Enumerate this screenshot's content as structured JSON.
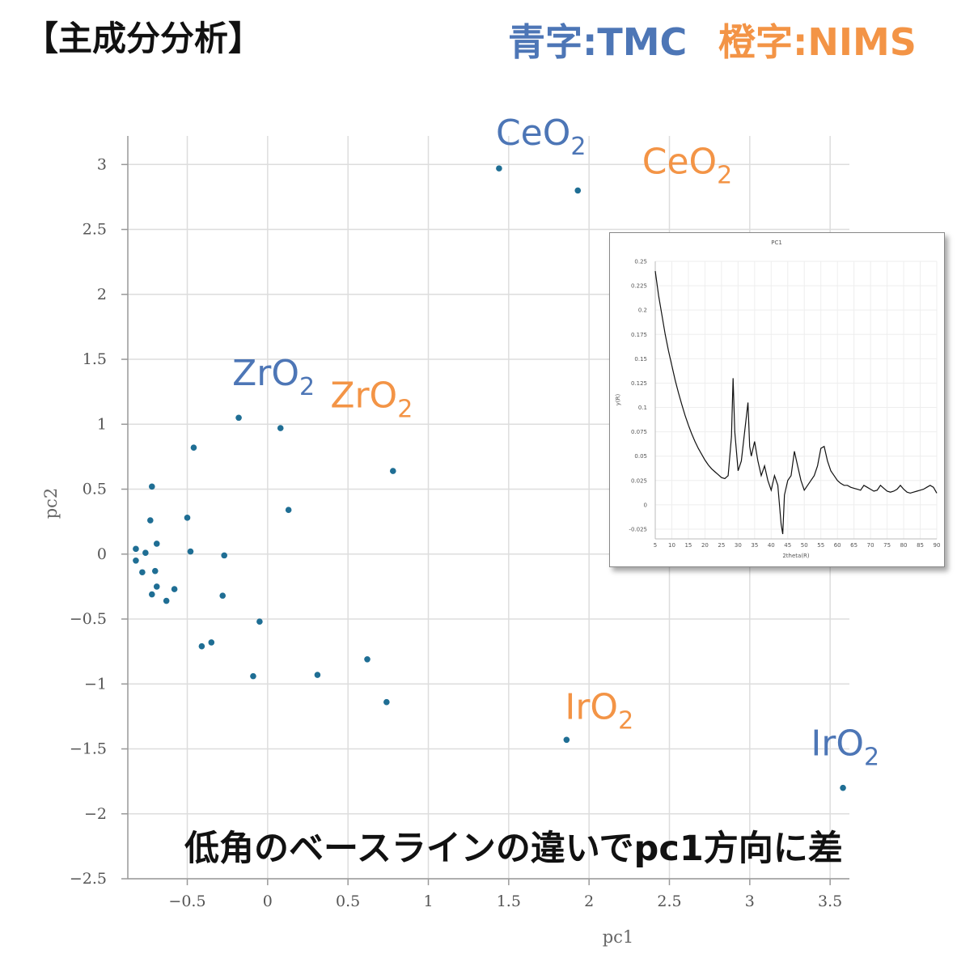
{
  "header": {
    "title": "【主成分分析】"
  },
  "legend_note": {
    "tmc": "青字:TMC",
    "nims": "橙字:NIMS"
  },
  "caption": "低角のベースラインの違いでpc1方向に差",
  "colors": {
    "tmc": "#4d76b6",
    "nims": "#f39446",
    "point": "#1f6e94"
  },
  "chart_data": [
    {
      "type": "scatter",
      "xlabel": "pc1",
      "ylabel": "pc2",
      "xlim": [
        -0.87,
        3.62
      ],
      "ylim": [
        -2.5,
        3.22
      ],
      "grid": true,
      "x_ticks": [
        -0.5,
        0,
        0.5,
        1,
        1.5,
        2,
        2.5,
        3,
        3.5
      ],
      "x_tick_labels": [
        "−0.5",
        "0",
        "0.5",
        "1",
        "1.5",
        "2",
        "2.5",
        "3",
        "3.5"
      ],
      "y_ticks": [
        3,
        2.5,
        2,
        1.5,
        1,
        0.5,
        0,
        -0.5,
        -1,
        -1.5,
        -2,
        -2.5
      ],
      "y_tick_labels": [
        "3",
        "2.5",
        "2",
        "1.5",
        "1",
        "0.5",
        "0",
        "−0.5",
        "−1",
        "−1.5",
        "−2",
        "−2.5"
      ],
      "points": [
        [
          1.44,
          2.97
        ],
        [
          1.93,
          2.8
        ],
        [
          -0.18,
          1.05
        ],
        [
          0.08,
          0.97
        ],
        [
          -0.46,
          0.82
        ],
        [
          0.78,
          0.64
        ],
        [
          -0.72,
          0.52
        ],
        [
          -0.5,
          0.28
        ],
        [
          0.13,
          0.34
        ],
        [
          -0.73,
          0.26
        ],
        [
          -0.69,
          0.08
        ],
        [
          -0.82,
          0.04
        ],
        [
          -0.76,
          0.01
        ],
        [
          -0.48,
          0.02
        ],
        [
          -0.27,
          -0.01
        ],
        [
          -0.82,
          -0.05
        ],
        [
          -0.78,
          -0.14
        ],
        [
          -0.7,
          -0.13
        ],
        [
          -0.69,
          -0.25
        ],
        [
          -0.58,
          -0.27
        ],
        [
          -0.72,
          -0.31
        ],
        [
          -0.28,
          -0.32
        ],
        [
          -0.63,
          -0.36
        ],
        [
          -0.05,
          -0.52
        ],
        [
          -0.35,
          -0.68
        ],
        [
          -0.41,
          -0.71
        ],
        [
          0.62,
          -0.81
        ],
        [
          0.31,
          -0.93
        ],
        [
          -0.09,
          -0.94
        ],
        [
          0.74,
          -1.14
        ],
        [
          1.86,
          -1.43
        ],
        [
          3.58,
          -1.8
        ]
      ],
      "annotations": [
        {
          "text": "CeO",
          "sub": "2",
          "group": "tmc",
          "x": 1.42,
          "y": 3.15
        },
        {
          "text": "CeO",
          "sub": "2",
          "group": "nims",
          "x": 2.33,
          "y": 2.93
        },
        {
          "text": "ZrO",
          "sub": "2",
          "group": "tmc",
          "x": -0.22,
          "y": 1.3
        },
        {
          "text": "ZrO",
          "sub": "2",
          "group": "nims",
          "x": 0.39,
          "y": 1.13
        },
        {
          "text": "IrO",
          "sub": "2",
          "group": "nims",
          "x": 1.85,
          "y": -1.27
        },
        {
          "text": "IrO",
          "sub": "2",
          "group": "tmc",
          "x": 3.38,
          "y": -1.55
        }
      ]
    },
    {
      "type": "line",
      "title": "PC1",
      "xlabel": "2theta(R)",
      "ylabel": "y(R)",
      "xlim": [
        5,
        90
      ],
      "ylim": [
        -0.035,
        0.25
      ],
      "x_ticks": [
        5,
        10,
        15,
        20,
        25,
        30,
        35,
        40,
        45,
        50,
        55,
        60,
        65,
        70,
        75,
        80,
        85,
        90
      ],
      "y_ticks": [
        0.25,
        0.225,
        0.2,
        0.175,
        0.15,
        0.125,
        0.1,
        0.075,
        0.05,
        0.025,
        0,
        -0.025
      ],
      "y_tick_labels": [
        "0.25",
        "0.225",
        "0.2",
        "0.175",
        "0.15",
        "0.125",
        "0.1",
        "0.075",
        "0.05",
        "0.025",
        "0",
        "-0.025"
      ],
      "grid": true,
      "x": [
        5,
        6,
        7,
        8,
        9,
        10,
        11,
        12,
        13,
        14,
        15,
        16,
        17,
        18,
        19,
        20,
        21,
        22,
        23,
        24,
        25,
        26,
        27,
        28,
        28.5,
        29,
        30,
        31,
        32,
        33,
        33.5,
        34,
        35,
        36,
        37,
        38,
        39,
        40,
        41,
        42,
        43,
        43.5,
        44,
        45,
        46,
        47,
        48,
        49,
        50,
        51,
        52,
        53,
        54,
        55,
        56,
        57,
        58,
        59,
        60,
        61,
        62,
        63,
        64,
        65,
        66,
        67,
        68,
        69,
        70,
        71,
        72,
        73,
        74,
        75,
        76,
        77,
        78,
        79,
        80,
        81,
        82,
        83,
        84,
        85,
        86,
        87,
        88,
        89,
        90
      ],
      "y": [
        0.24,
        0.215,
        0.195,
        0.175,
        0.158,
        0.143,
        0.128,
        0.115,
        0.103,
        0.092,
        0.082,
        0.073,
        0.065,
        0.058,
        0.052,
        0.046,
        0.041,
        0.037,
        0.034,
        0.031,
        0.028,
        0.027,
        0.03,
        0.07,
        0.13,
        0.075,
        0.035,
        0.045,
        0.075,
        0.105,
        0.06,
        0.05,
        0.065,
        0.045,
        0.03,
        0.04,
        0.025,
        0.015,
        0.03,
        0.02,
        -0.02,
        -0.03,
        0.01,
        0.025,
        0.03,
        0.055,
        0.04,
        0.025,
        0.015,
        0.02,
        0.025,
        0.03,
        0.04,
        0.058,
        0.06,
        0.045,
        0.035,
        0.03,
        0.025,
        0.022,
        0.02,
        0.02,
        0.018,
        0.017,
        0.016,
        0.015,
        0.02,
        0.018,
        0.016,
        0.014,
        0.015,
        0.02,
        0.017,
        0.014,
        0.013,
        0.014,
        0.016,
        0.02,
        0.016,
        0.013,
        0.012,
        0.013,
        0.014,
        0.015,
        0.016,
        0.018,
        0.02,
        0.018,
        0.012
      ]
    }
  ]
}
